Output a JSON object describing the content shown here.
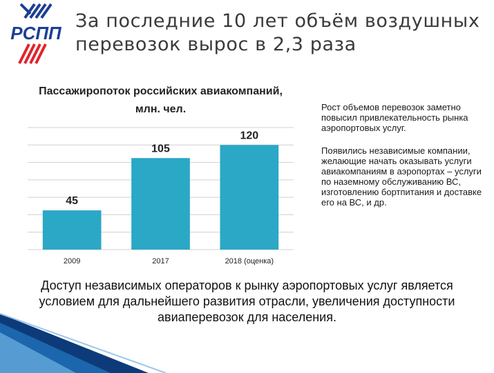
{
  "header": {
    "logo_text": "РСПП",
    "title": "За последние 10 лет объём воздушных перевозок вырос в 2,3 раза"
  },
  "chart_data": {
    "type": "bar",
    "title": "Пассажиропоток российских авиакомпаний, млн. чел.",
    "categories": [
      "2009",
      "2017",
      "2018 (оценка)"
    ],
    "values": [
      45,
      105,
      120
    ],
    "ylim": [
      0,
      140
    ],
    "grid": true,
    "bar_color": "#2aa8c6",
    "data_labels": [
      "45",
      "105",
      "120"
    ]
  },
  "side_text": {
    "para1": "Рост объемов перевозок заметно повысил привлекательность рынка аэропортовых услуг.",
    "para2": "Появились независимые компании, желающие начать оказывать услуги авиакомпаниям в аэропортах – услуги по наземному обслуживанию ВС, изготовлению бортпитания и доставке его на ВС, и др."
  },
  "bottom_text": "Доступ независимых операторов к рынку аэропортовых услуг является условием для дальнейшего развития отрасли, увеличения доступности авиаперевозок для населения.",
  "colors": {
    "logo_blue": "#1c3f94",
    "logo_red": "#e0242b",
    "accent_blue": "#1f6fb5",
    "corner_dark": "#0d3b7a"
  }
}
